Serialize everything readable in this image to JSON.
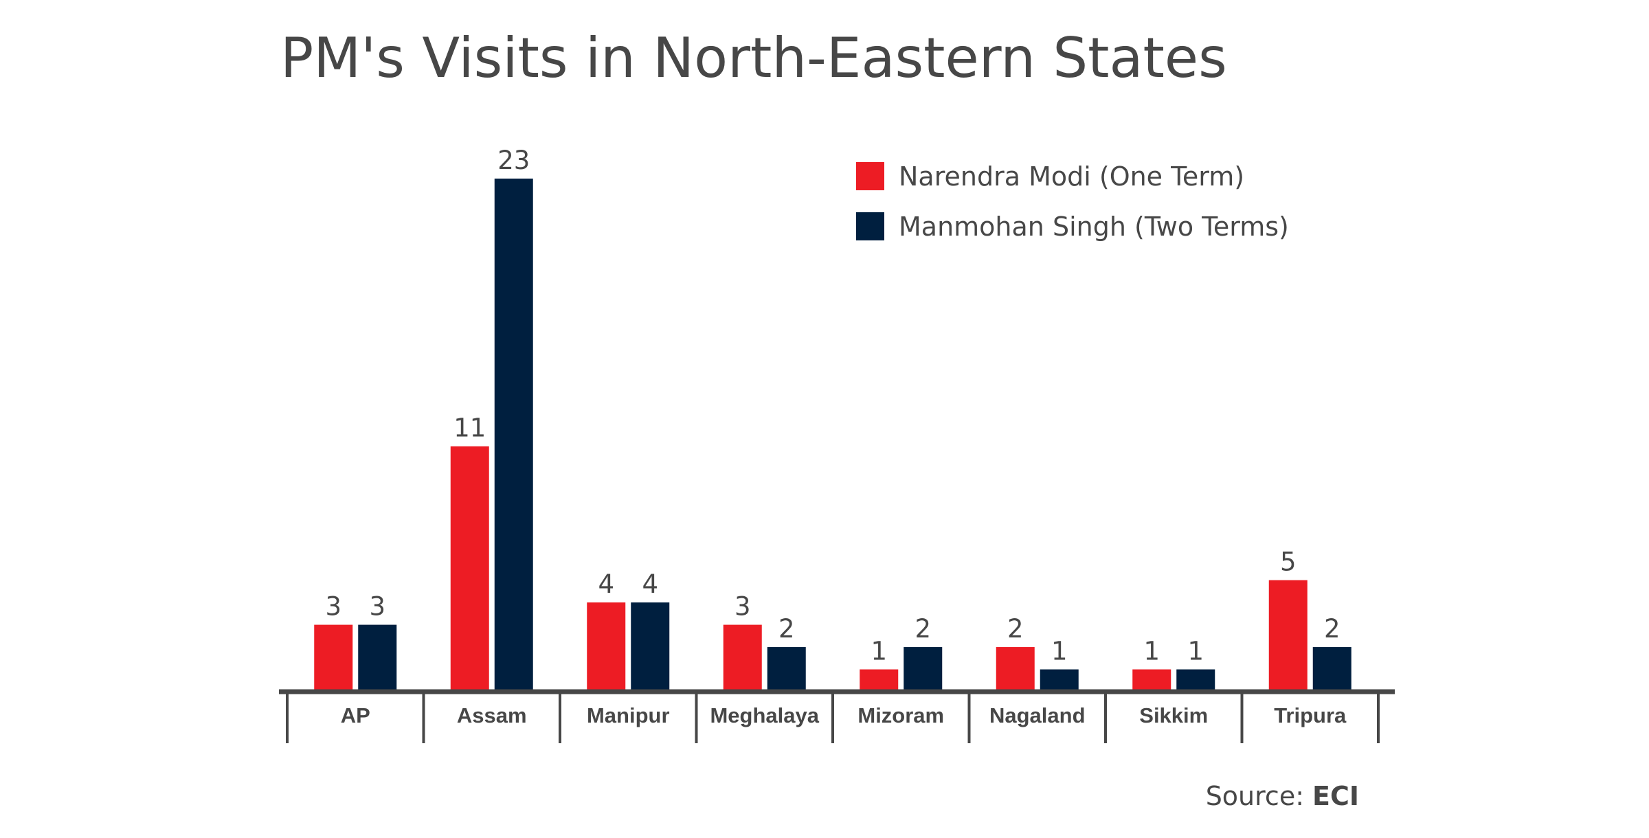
{
  "chart_data": {
    "type": "bar",
    "title": "PM's Visits in North-Eastern States",
    "categories": [
      "AP",
      "Assam",
      "Manipur",
      "Meghalaya",
      "Mizoram",
      "Nagaland",
      "Sikkim",
      "Tripura"
    ],
    "series": [
      {
        "name": "Narendra Modi (One Term)",
        "color": "#ED1C24",
        "values": [
          3,
          11,
          4,
          3,
          1,
          2,
          1,
          5
        ]
      },
      {
        "name": "Manmohan Singh (Two Terms)",
        "color": "#001F3F",
        "values": [
          3,
          23,
          4,
          2,
          2,
          1,
          1,
          2
        ]
      }
    ],
    "ylim": [
      0,
      23
    ],
    "grid": false,
    "legend_position": "top-right",
    "xlabel": "",
    "ylabel": ""
  },
  "source": {
    "label": "Source:",
    "value": "ECI"
  }
}
